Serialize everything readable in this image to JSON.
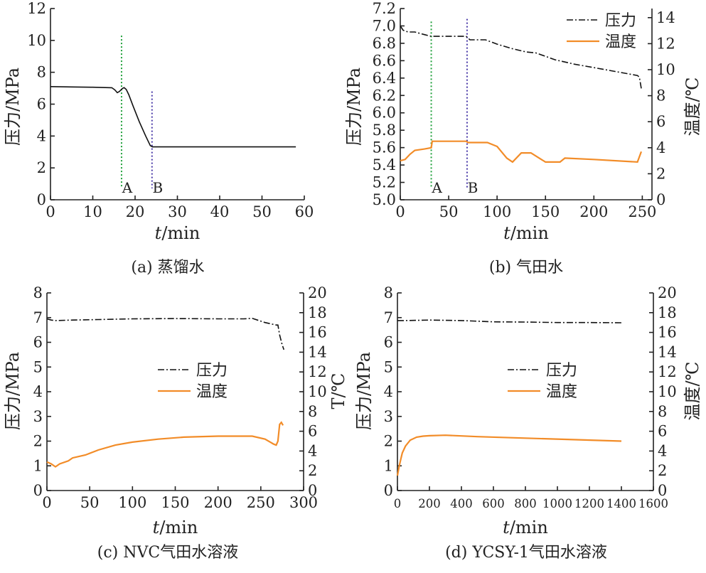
{
  "colors": {
    "pressure": "#111111",
    "temperature": "#F28C28",
    "marker_A": "#1fa03a",
    "marker_B": "#4a3aa8"
  },
  "chart_data": [
    {
      "type": "line",
      "caption": "(a) 蒸馏水",
      "xlabel_italic": "t",
      "xlabel": "/min",
      "ylabel": "压力/MPa",
      "xlim": [
        0,
        60
      ],
      "xticks": [
        "0",
        "10",
        "20",
        "30",
        "40",
        "50",
        "60"
      ],
      "ylim": [
        0,
        12
      ],
      "yticks": [
        "0",
        "2",
        "4",
        "6",
        "8",
        "10",
        "12"
      ],
      "grid": false,
      "series": [
        {
          "axis": "left",
          "color_key": "pressure",
          "style": "solid",
          "x": [
            0,
            5,
            10,
            14.5,
            15.2,
            15.8,
            16.3,
            17.0,
            17.4,
            17.9,
            18.5,
            19.5,
            21,
            22.5,
            23.6,
            24.1,
            30,
            40,
            50,
            58
          ],
          "y": [
            7.1,
            7.08,
            7.06,
            7.03,
            6.9,
            6.72,
            6.8,
            6.98,
            7.04,
            6.93,
            6.6,
            5.9,
            4.9,
            4.0,
            3.4,
            3.32,
            3.32,
            3.32,
            3.32,
            3.32
          ]
        }
      ],
      "markers": [
        {
          "label": "A",
          "x": 16.8,
          "color_key": "marker_A",
          "y_top": 10.3
        },
        {
          "label": "B",
          "x": 24.0,
          "color_key": "marker_B",
          "y_top": 6.8
        }
      ]
    },
    {
      "type": "line",
      "caption": "(b) 气田水",
      "xlabel_italic": "t",
      "xlabel": "/min",
      "ylabel": "压力/MPa",
      "y2label": "温度/℃",
      "xlim": [
        0,
        260
      ],
      "xticks": [
        "0",
        "50",
        "100",
        "150",
        "200",
        "250"
      ],
      "ylim": [
        5.0,
        7.2
      ],
      "yticks": [
        "5.0",
        "5.2",
        "5.4",
        "5.6",
        "5.8",
        "6.0",
        "6.2",
        "6.4",
        "6.6",
        "6.8",
        "7.0",
        "7.2"
      ],
      "y2lim": [
        0,
        14.7
      ],
      "y2ticks": [
        "0",
        "2",
        "4",
        "6",
        "8",
        "10",
        "12",
        "14"
      ],
      "grid": false,
      "legend": {
        "position": "top-right",
        "entries": [
          "压力",
          "温度"
        ]
      },
      "series": [
        {
          "name": "压力",
          "axis": "left",
          "color_key": "pressure",
          "style": "dashdot",
          "x": [
            0,
            3,
            8,
            15,
            25,
            32,
            40,
            55,
            68,
            72,
            88,
            100,
            115,
            130,
            140,
            150,
            160,
            180,
            200,
            230,
            245,
            247,
            249
          ],
          "y": [
            7.0,
            6.95,
            6.93,
            6.93,
            6.9,
            6.88,
            6.88,
            6.88,
            6.88,
            6.84,
            6.84,
            6.79,
            6.74,
            6.7,
            6.69,
            6.65,
            6.61,
            6.56,
            6.52,
            6.46,
            6.43,
            6.41,
            6.28
          ]
        },
        {
          "name": "温度",
          "axis": "right",
          "color_key": "temperature",
          "style": "solid",
          "x": [
            0,
            5,
            10,
            15,
            25,
            32,
            33,
            50,
            68,
            70,
            90,
            100,
            110,
            116,
            125,
            135,
            150,
            165,
            170,
            200,
            245,
            249
          ],
          "y": [
            3.0,
            3.1,
            3.5,
            3.8,
            3.9,
            4.0,
            4.5,
            4.5,
            4.5,
            4.4,
            4.4,
            4.1,
            3.2,
            2.9,
            3.6,
            3.6,
            2.9,
            2.9,
            3.2,
            3.1,
            2.9,
            3.7
          ]
        }
      ],
      "markers": [
        {
          "label": "A",
          "x": 32,
          "color_key": "marker_A",
          "y_top": 7.05
        },
        {
          "label": "B",
          "x": 69,
          "color_key": "marker_B",
          "y_top": 7.08
        }
      ]
    },
    {
      "type": "line",
      "caption": "(c) NVC气田水溶液",
      "xlabel_italic": "t",
      "xlabel": "/min",
      "ylabel": "压力/MPa",
      "y2label": "T/℃",
      "xlim": [
        0,
        300
      ],
      "xticks": [
        "0",
        "50",
        "100",
        "150",
        "200",
        "250",
        "300"
      ],
      "ylim": [
        0,
        8
      ],
      "yticks": [
        "0",
        "1",
        "2",
        "3",
        "4",
        "5",
        "6",
        "7",
        "8"
      ],
      "y2lim": [
        0,
        20
      ],
      "y2ticks": [
        "0",
        "2",
        "4",
        "6",
        "8",
        "10",
        "12",
        "14",
        "16",
        "18",
        "20"
      ],
      "grid": false,
      "legend": {
        "position": "center-right",
        "entries": [
          "压力",
          "温度"
        ]
      },
      "series": [
        {
          "name": "压力",
          "axis": "left",
          "color_key": "pressure",
          "style": "dashdot",
          "x": [
            0,
            5,
            10,
            30,
            60,
            100,
            150,
            200,
            230,
            240,
            255,
            268,
            270,
            272,
            275,
            277
          ],
          "y": [
            6.95,
            6.9,
            6.88,
            6.9,
            6.92,
            6.95,
            6.96,
            6.95,
            6.95,
            6.97,
            6.8,
            6.7,
            6.7,
            6.3,
            5.9,
            5.7
          ]
        },
        {
          "name": "温度",
          "axis": "right",
          "color_key": "temperature",
          "style": "solid",
          "x": [
            0,
            5,
            10,
            15,
            25,
            30,
            45,
            60,
            80,
            100,
            130,
            160,
            200,
            240,
            255,
            265,
            268,
            270,
            272,
            274,
            276
          ],
          "y": [
            2.9,
            2.7,
            2.4,
            2.7,
            3.0,
            3.3,
            3.6,
            4.1,
            4.6,
            4.9,
            5.2,
            5.4,
            5.5,
            5.5,
            5.2,
            4.7,
            4.6,
            5.0,
            6.7,
            6.9,
            6.6
          ]
        }
      ]
    },
    {
      "type": "line",
      "caption": "(d) YCSY-1气田水溶液",
      "xlabel_italic": "t",
      "xlabel": "/min",
      "ylabel": "压力/MPa",
      "y2label": "温度/℃",
      "xlim": [
        0,
        1600
      ],
      "xticks": [
        "0",
        "200",
        "400",
        "600",
        "800",
        "1000",
        "1200",
        "1400",
        "1600"
      ],
      "ylim": [
        0,
        8
      ],
      "yticks": [
        "0",
        "1",
        "2",
        "3",
        "4",
        "5",
        "6",
        "7",
        "8"
      ],
      "y2lim": [
        0,
        20
      ],
      "y2ticks": [
        "0",
        "2",
        "4",
        "6",
        "8",
        "10",
        "12",
        "14",
        "16",
        "18",
        "20"
      ],
      "grid": false,
      "legend": {
        "position": "center-right",
        "entries": [
          "压力",
          "温度"
        ]
      },
      "series": [
        {
          "name": "压力",
          "axis": "left",
          "color_key": "pressure",
          "style": "dashdot",
          "x": [
            0,
            50,
            200,
            400,
            600,
            800,
            1000,
            1200,
            1400
          ],
          "y": [
            6.88,
            6.88,
            6.9,
            6.88,
            6.83,
            6.82,
            6.8,
            6.8,
            6.79
          ]
        },
        {
          "name": "温度",
          "axis": "right",
          "color_key": "temperature",
          "style": "solid",
          "x": [
            0,
            10,
            20,
            30,
            50,
            80,
            120,
            160,
            200,
            300,
            500,
            800,
            1100,
            1400
          ],
          "y": [
            1.5,
            2.4,
            3.1,
            3.8,
            4.5,
            5.1,
            5.4,
            5.5,
            5.55,
            5.6,
            5.45,
            5.3,
            5.15,
            5.0
          ]
        }
      ]
    }
  ]
}
